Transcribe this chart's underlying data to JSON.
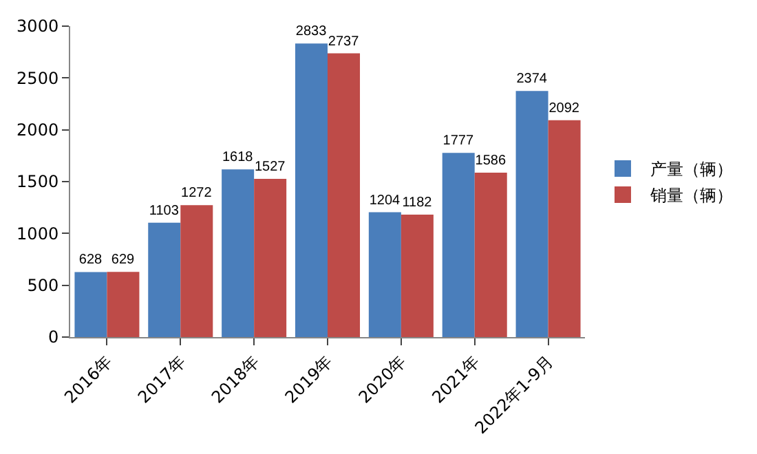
{
  "chart_data": {
    "type": "bar",
    "categories": [
      "2016年",
      "2017年",
      "2018年",
      "2019年",
      "2020年",
      "2021年",
      "2022年1-9月"
    ],
    "series": [
      {
        "name": "产量（辆）",
        "color": "#4a7ebb",
        "values": [
          628,
          1103,
          1618,
          2833,
          1204,
          1777,
          2374
        ]
      },
      {
        "name": "销量（辆）",
        "color": "#be4b48",
        "values": [
          629,
          1272,
          1527,
          2737,
          1182,
          1586,
          2092
        ]
      }
    ],
    "ylim": [
      0,
      3000
    ],
    "yticks": [
      0,
      500,
      1000,
      1500,
      2000,
      2500,
      3000
    ],
    "data_labels": true,
    "legend": "right"
  }
}
